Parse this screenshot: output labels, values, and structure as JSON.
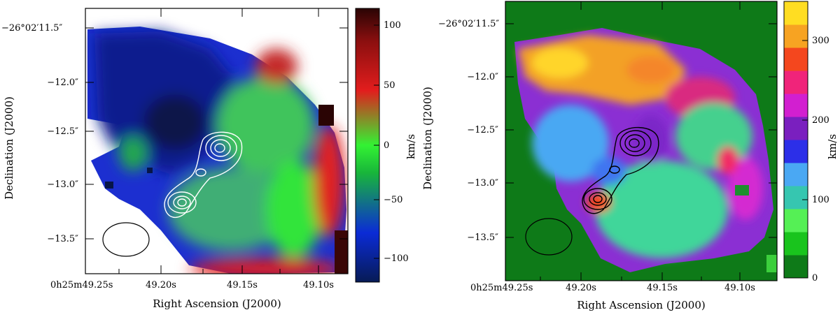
{
  "panels": [
    {
      "id": "left",
      "map": "velocity",
      "xlabel": "Right Ascension (J2000)",
      "ylabel": "Declination (J2000)",
      "ra_prefix": "0h25m49.25s",
      "ra_ticks": [
        "49.20s",
        "49.15s",
        "49.10s"
      ],
      "dec_top": "−26°02′11.5″",
      "dec_ticks": [
        "−12.0″",
        "−12.5″",
        "−13.0″",
        "−13.5″"
      ],
      "colorbar": {
        "label": "km/s",
        "ticks": [
          "100",
          "50",
          "0",
          "−50",
          "−100"
        ],
        "colors": [
          "#071b55",
          "#0b2bd6",
          "#18b63a",
          "#33f233",
          "#e21d1d",
          "#8b0f0f",
          "#2a0404"
        ]
      },
      "contour_color": "#ffffff"
    },
    {
      "id": "right",
      "map": "velocity-dispersion",
      "xlabel": "Right Ascension (J2000)",
      "ylabel": "Declination (J2000)",
      "ra_prefix": "0h25m49.25s",
      "ra_ticks": [
        "49.20s",
        "49.15s",
        "49.10s"
      ],
      "dec_top": "−26°02′11.5″",
      "dec_ticks": [
        "−12.0″",
        "−12.5″",
        "−13.0″",
        "−13.5″"
      ],
      "colorbar": {
        "label": "km/s",
        "ticks": [
          "300",
          "200",
          "100",
          "0"
        ],
        "colors": [
          "#0e7a18",
          "#19c41d",
          "#55f055",
          "#36c6b0",
          "#4aa8f3",
          "#2c2fe8",
          "#7a1fbf",
          "#d21fd0",
          "#f0247a",
          "#f4471e",
          "#f7a322",
          "#ffdd22"
        ]
      },
      "contour_color": "#000000"
    }
  ]
}
